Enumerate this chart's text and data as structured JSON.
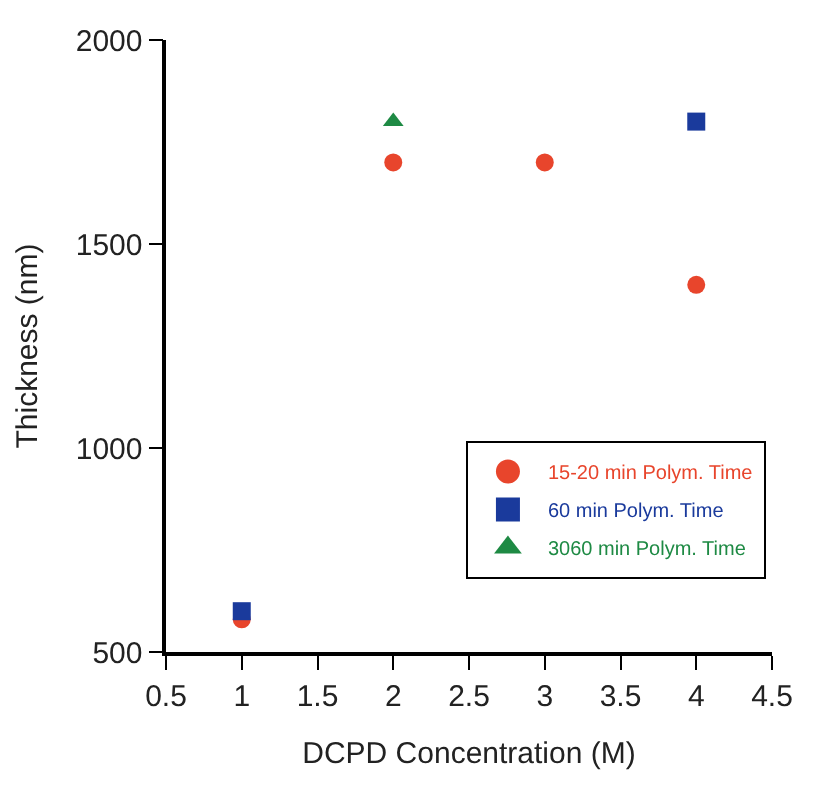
{
  "chart_data": {
    "type": "scatter",
    "xlabel": "DCPD Concentration (M)",
    "ylabel": "Thickness (nm)",
    "xlim": [
      0.5,
      4.5
    ],
    "xticks": [
      0.5,
      1,
      1.5,
      2,
      2.5,
      3,
      3.5,
      4,
      4.5
    ],
    "ylim": [
      500,
      2000
    ],
    "yticks": [
      500,
      1000,
      1500,
      2000
    ],
    "legend": "bottom right",
    "series": [
      {
        "name": "15-20 min Polym. Time",
        "color": "#e8452c",
        "marker": "circle",
        "x": [
          1,
          2,
          3,
          4
        ],
        "values": [
          580,
          1700,
          1700,
          1400
        ]
      },
      {
        "name": "60 min Polym. Time",
        "color": "#1a3a9c",
        "marker": "square",
        "x": [
          1,
          4
        ],
        "values": [
          600,
          1800
        ]
      },
      {
        "name": "3060 min Polym. Time",
        "color": "#1e8a44",
        "marker": "triangle",
        "x": [
          2
        ],
        "values": [
          1800
        ]
      }
    ]
  }
}
